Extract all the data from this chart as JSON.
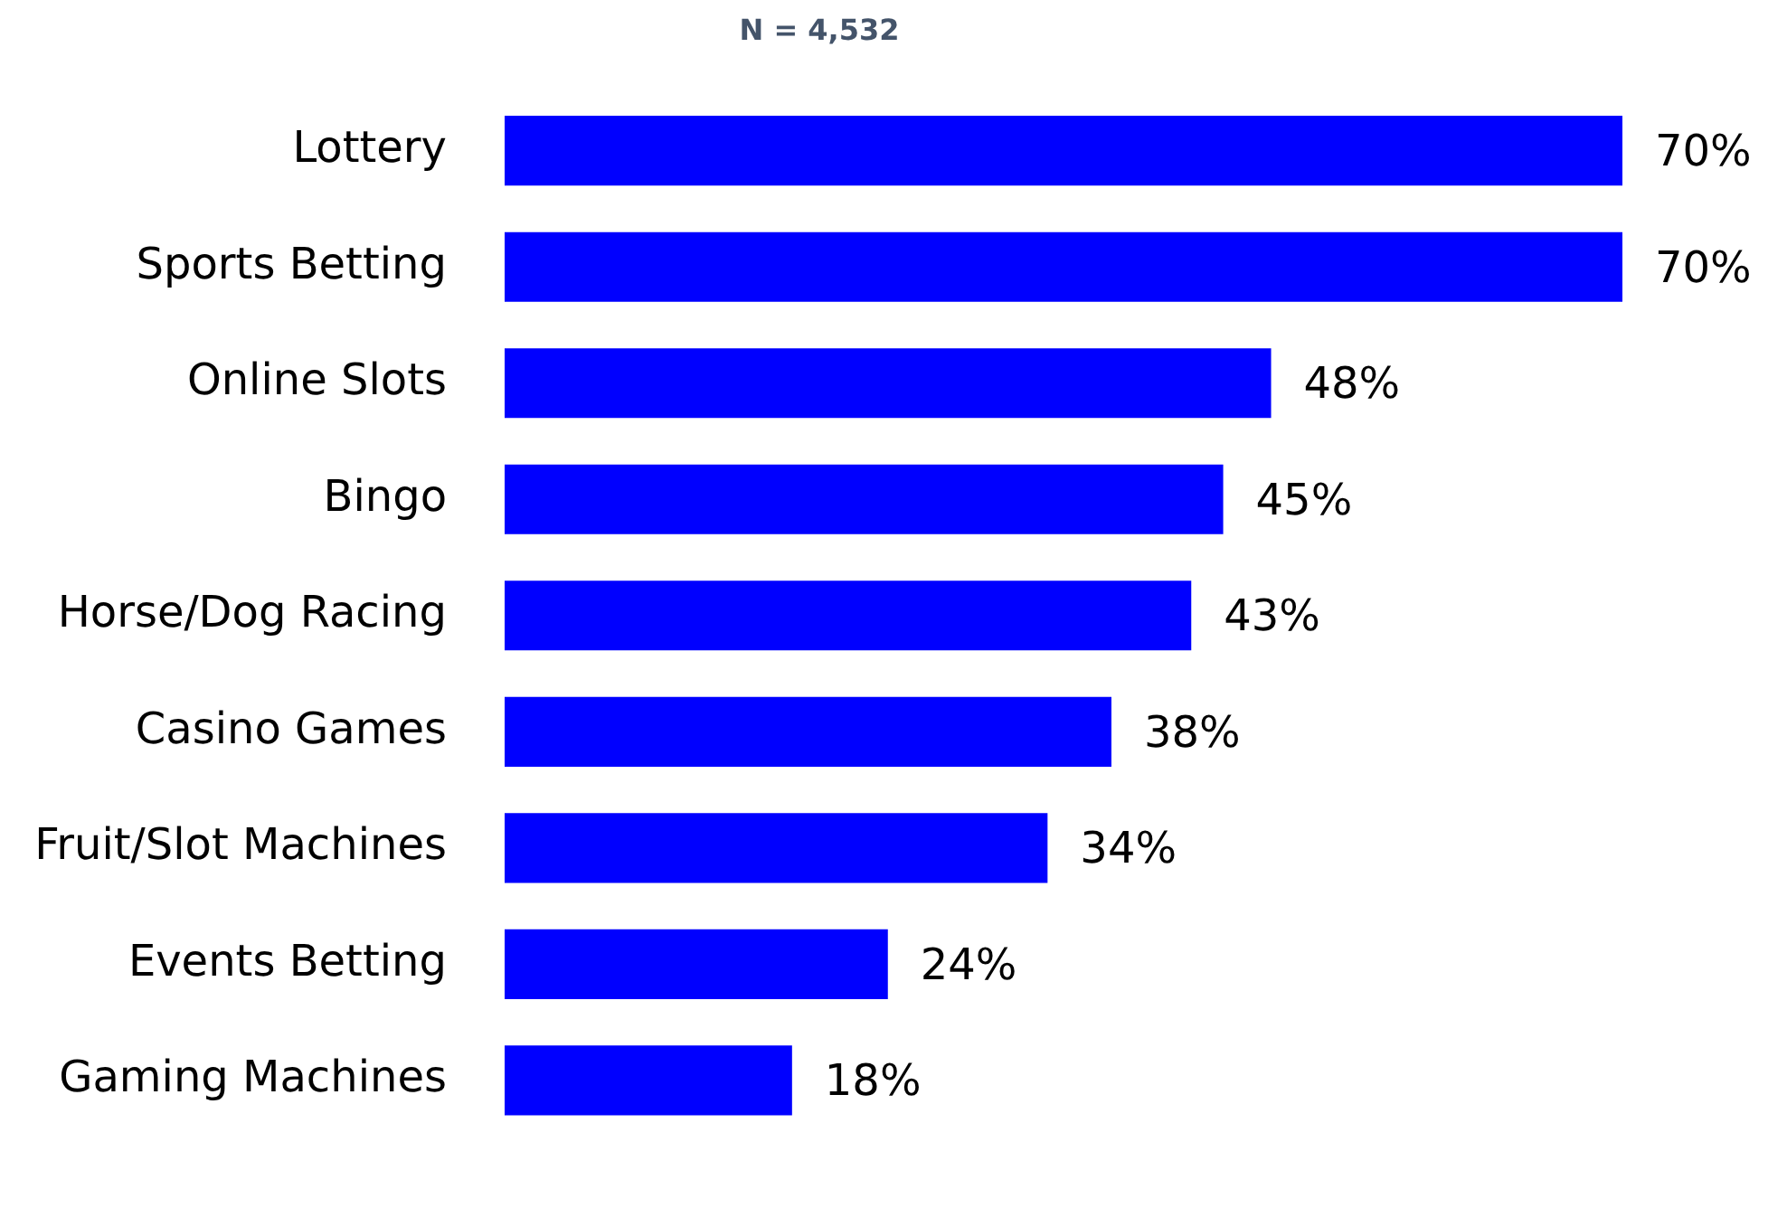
{
  "chart_data": {
    "type": "bar",
    "orientation": "horizontal",
    "title": "N = 4,532",
    "categories": [
      "Lottery",
      "Sports Betting",
      "Online Slots",
      "Bingo",
      "Horse/Dog Racing",
      "Casino Games",
      "Fruit/Slot Machines",
      "Events Betting",
      "Gaming Machines"
    ],
    "values": [
      70,
      70,
      48,
      45,
      43,
      38,
      34,
      24,
      18
    ],
    "value_labels": [
      "70%",
      "70%",
      "48%",
      "45%",
      "43%",
      "38%",
      "34%",
      "24%",
      "18%"
    ],
    "color": "#0000ff",
    "xlim": [
      0,
      70
    ],
    "tick_labels": "y",
    "legend": false
  }
}
